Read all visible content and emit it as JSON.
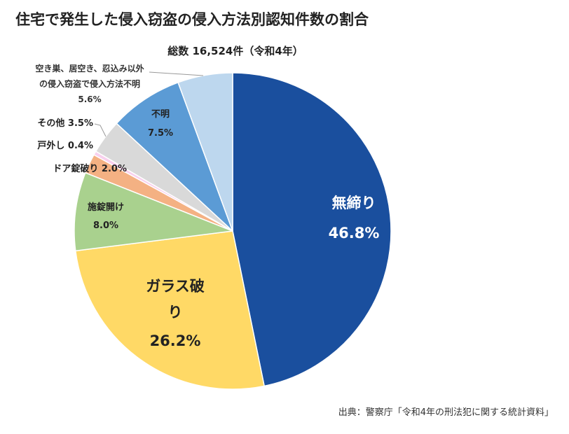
{
  "chart_data": {
    "type": "pie",
    "title": "住宅で発生した侵入窃盗の侵入方法別認知件数の割合",
    "subtitle": "総数 16,524件（令和4年）",
    "source": "出典：警察庁「令和4年の刑法犯に関する統計資料」",
    "start": "top",
    "direction": "clockwise",
    "slices": [
      {
        "label": "無締り",
        "value": 46.8,
        "value_label": "46.8%",
        "color": "#1a4f9e"
      },
      {
        "label": "ガラス破り",
        "label_lines": [
          "ガラス破",
          "り"
        ],
        "value": 26.2,
        "value_label": "26.2%",
        "color": "#ffd966"
      },
      {
        "label": "施錠開け",
        "value": 8.0,
        "value_label": "8.0%",
        "color": "#a9d18e"
      },
      {
        "label": "ドア錠破り",
        "value": 2.0,
        "value_label": "ドア錠破り 2.0%",
        "color": "#f4b183"
      },
      {
        "label": "戸外し",
        "value": 0.4,
        "value_label": "戸外し 0.4%",
        "color": "#f8d0ee"
      },
      {
        "label": "その他",
        "value": 3.5,
        "value_label": "その他 3.5%",
        "color": "#d9d9d9"
      },
      {
        "label": "不明",
        "value": 7.5,
        "value_label": "7.5%",
        "color": "#5b9bd5"
      },
      {
        "label": "空き巣、居空き、忍込み以外の侵入窃盗で侵入方法不明",
        "label_lines": [
          "空き巣、居空き、忍込み以外",
          "の侵入窃盗で侵入方法不明"
        ],
        "value": 5.6,
        "value_label": "5.6%",
        "color": "#bdd7ee"
      }
    ]
  }
}
